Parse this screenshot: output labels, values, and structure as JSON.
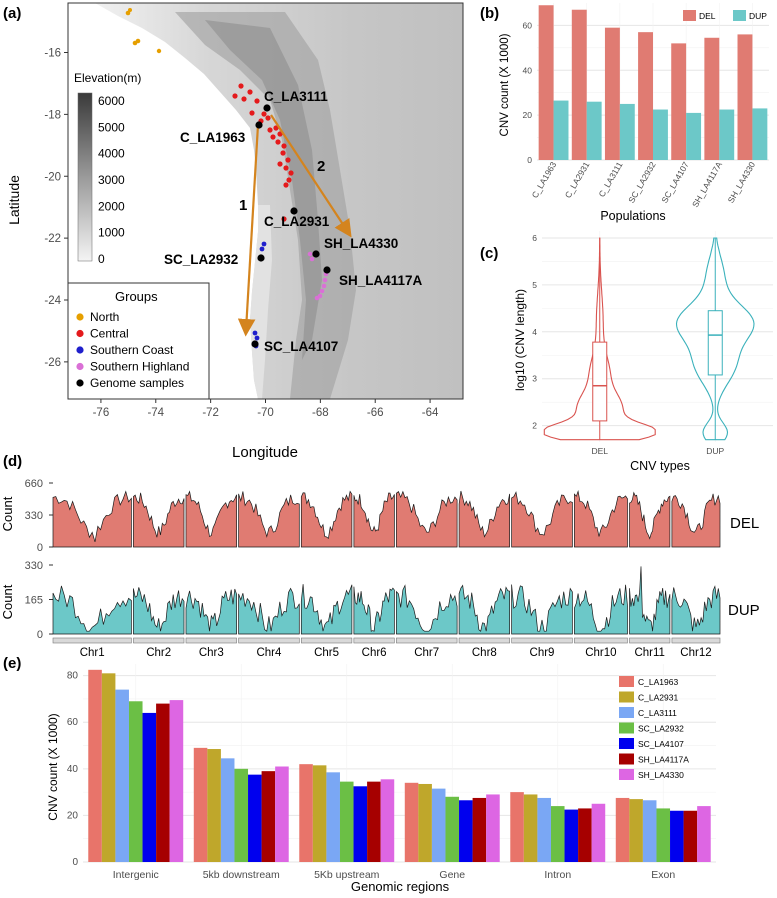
{
  "panel_labels": {
    "a": "(a)",
    "b": "(b)",
    "c": "(c)",
    "d": "(d)",
    "e": "(e)"
  },
  "chart_data": [
    {
      "id": "a",
      "type": "scatter",
      "description_kind": "map",
      "xlabel": "Longitude",
      "ylabel": "Latitude",
      "xticks": [
        -76,
        -74,
        -72,
        -70,
        -68,
        -66,
        -64
      ],
      "yticks": [
        -16,
        -18,
        -20,
        -22,
        -24,
        -26
      ],
      "xlim": [
        -77.2,
        -62.8
      ],
      "ylim": [
        -27.2,
        -14.4
      ],
      "elevation_legend": {
        "title": "Elevation(m)",
        "ticks": [
          6000,
          5000,
          4000,
          3000,
          2000,
          1000,
          0
        ]
      },
      "groups_legend": {
        "title": "Groups",
        "items": [
          {
            "label": "North",
            "color": "#E69F00"
          },
          {
            "label": "Central",
            "color": "#E41A1C"
          },
          {
            "label": "Southern Coast",
            "color": "#1F1FCC"
          },
          {
            "label": "Southern Highland",
            "color": "#DA70D6"
          },
          {
            "label": "Genome samples",
            "color": "#000000"
          }
        ]
      },
      "genome_samples": [
        {
          "label": "C_LA3111",
          "lon": -70.0,
          "lat": -17.5
        },
        {
          "label": "C_LA1963",
          "lon": -70.2,
          "lat": -18.0
        },
        {
          "label": "C_LA2931",
          "lon": -69.0,
          "lat": -20.9
        },
        {
          "label": "SC_LA2932",
          "lon": -70.2,
          "lat": -22.5
        },
        {
          "label": "SH_LA4330",
          "lon": -68.4,
          "lat": -22.3
        },
        {
          "label": "SH_LA4117A",
          "lon": -67.9,
          "lat": -22.9
        },
        {
          "label": "SC_LA4107",
          "lon": -70.3,
          "lat": -25.4
        }
      ],
      "arrows": [
        {
          "label": "1",
          "from": [
            -70.1,
            -18.3
          ],
          "to": [
            -70.8,
            -25.0
          ]
        },
        {
          "label": "2",
          "from": [
            -69.6,
            -18.0
          ],
          "to": [
            -67.3,
            -22.0
          ]
        }
      ]
    },
    {
      "id": "b",
      "type": "bar",
      "xlabel": "Populations",
      "ylabel": "CNV count (X 1000)",
      "ylim": [
        0,
        70
      ],
      "yticks": [
        0,
        20,
        40,
        60
      ],
      "categories": [
        "C_LA1963",
        "C_LA2931",
        "C_LA3111",
        "SC_LA2932",
        "SC_LA4107",
        "SH_LA4117A",
        "SH_LA4330"
      ],
      "series": [
        {
          "name": "DEL",
          "color": "#E07B72",
          "values": [
            69,
            67,
            59,
            57,
            52,
            54.5,
            56
          ]
        },
        {
          "name": "DUP",
          "color": "#6CC8C8",
          "values": [
            26.5,
            26,
            25,
            22.5,
            21,
            22.5,
            23
          ]
        }
      ]
    },
    {
      "id": "c",
      "type": "violin",
      "xlabel": "CNV types",
      "ylabel": "log10 (CNV length)",
      "ylim": [
        1.65,
        6.15
      ],
      "yticks": [
        2,
        3,
        4,
        5,
        6
      ],
      "groups": [
        {
          "name": "DEL",
          "color": "#D9534F",
          "min": 1.7,
          "q1": 2.1,
          "median": 2.85,
          "q3": 3.78,
          "max": 6.0
        },
        {
          "name": "DUP",
          "color": "#3AB1BB",
          "min": 1.7,
          "q1": 3.08,
          "median": 3.93,
          "q3": 4.45,
          "max": 6.0
        }
      ]
    },
    {
      "id": "d",
      "type": "area",
      "chromosomes": [
        "Chr1",
        "Chr2",
        "Chr3",
        "Chr4",
        "Chr5",
        "Chr6",
        "Chr7",
        "Chr8",
        "Chr9",
        "Chr10",
        "Chr11",
        "Chr12"
      ],
      "tracks": [
        {
          "name": "DEL",
          "ylabel": "Count",
          "yticks": [
            0,
            330,
            660
          ],
          "ylim": [
            0,
            660
          ],
          "color": "#E07B72"
        },
        {
          "name": "DUP",
          "ylabel": "Count",
          "yticks": [
            0,
            165,
            330
          ],
          "ylim": [
            0,
            330
          ],
          "color": "#6CC8C8"
        }
      ]
    },
    {
      "id": "e",
      "type": "bar",
      "xlabel": "Genomic regions",
      "ylabel": "CNV count (X 1000)",
      "ylim": [
        0,
        85
      ],
      "yticks": [
        0,
        20,
        40,
        60,
        80
      ],
      "categories": [
        "Intergenic",
        "5kb downstream",
        "5Kb upstream",
        "Gene",
        "Intron",
        "Exon"
      ],
      "series": [
        {
          "name": "C_LA1963",
          "color": "#E8746A",
          "values": [
            82.5,
            49,
            42,
            34,
            30,
            27.5
          ]
        },
        {
          "name": "C_LA2931",
          "color": "#BFA72B",
          "values": [
            81,
            48.5,
            41.5,
            33.5,
            29,
            27
          ]
        },
        {
          "name": "C_LA3111",
          "color": "#7AA7F4",
          "values": [
            74,
            44.5,
            38.5,
            31.5,
            27.5,
            26.5
          ]
        },
        {
          "name": "SC_LA2932",
          "color": "#6BBF45",
          "values": [
            69,
            40,
            34.5,
            28,
            24,
            23
          ]
        },
        {
          "name": "SC_LA4107",
          "color": "#0000EE",
          "values": [
            64,
            37.5,
            32.5,
            26.5,
            22.5,
            22
          ]
        },
        {
          "name": "SH_LA4117A",
          "color": "#A60000",
          "values": [
            68,
            39,
            34.5,
            27.5,
            23,
            22
          ]
        },
        {
          "name": "SH_LA4330",
          "color": "#DD66E3",
          "values": [
            69.5,
            41,
            35.5,
            29,
            25,
            24
          ]
        }
      ]
    }
  ]
}
